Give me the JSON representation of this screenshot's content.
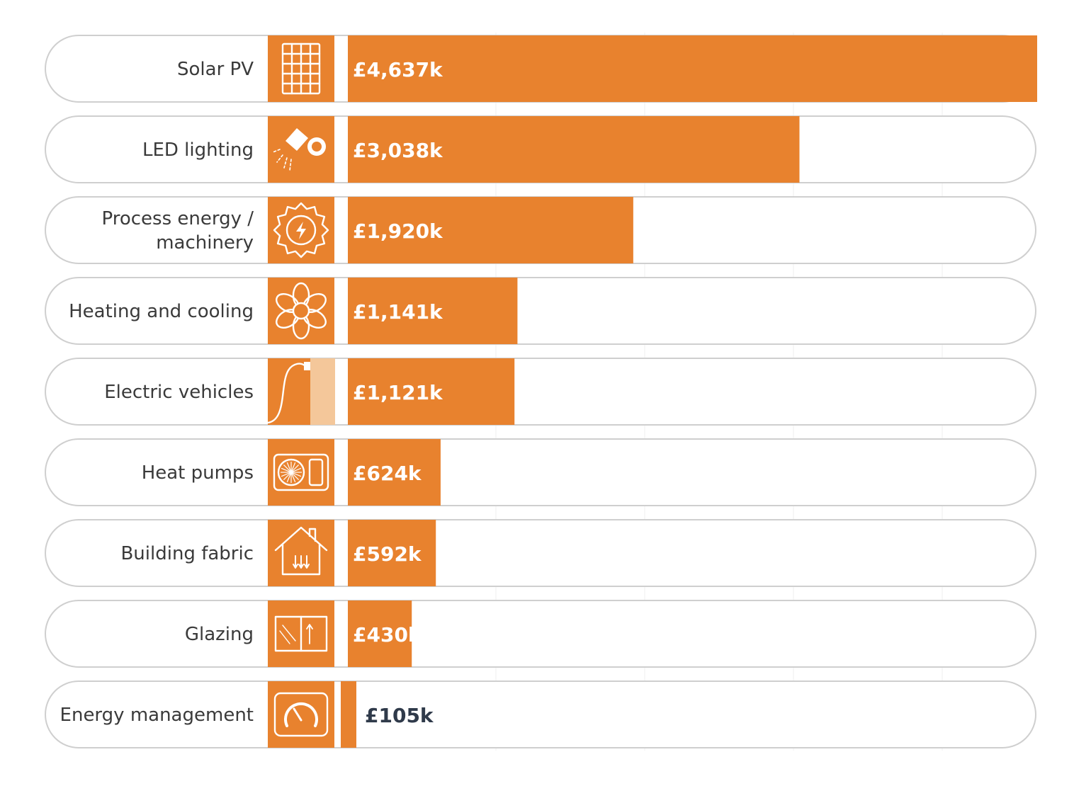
{
  "colors": {
    "bar": "#E8822E",
    "bar_light": "#F4C79A",
    "pill_border": "#cfcfcf",
    "label_text": "#3a3a3a",
    "value_in_bar": "#ffffff",
    "value_outside": "#2f3a4a"
  },
  "chart_data": {
    "type": "bar",
    "orientation": "horizontal",
    "categories": [
      "Solar PV",
      "LED lighting",
      "Process energy / machinery",
      "Heating and cooling",
      "Electric vehicles",
      "Heat pumps",
      "Building fabric",
      "Glazing",
      "Energy management"
    ],
    "label_lines": [
      [
        "Solar PV"
      ],
      [
        "LED lighting"
      ],
      [
        "Process energy /",
        "machinery"
      ],
      [
        "Heating and cooling"
      ],
      [
        "Electric vehicles"
      ],
      [
        "Heat pumps"
      ],
      [
        "Building fabric"
      ],
      [
        "Glazing"
      ],
      [
        "Energy management"
      ]
    ],
    "values": [
      4637,
      3038,
      1920,
      1141,
      1121,
      624,
      592,
      430,
      105
    ],
    "value_labels": [
      "£4,637k",
      "£3,038k",
      "£1,920k",
      "£1,141k",
      "£1,121k",
      "£624k",
      "£592k",
      "£430k",
      "£105k"
    ],
    "icons": [
      "solar-panel-icon",
      "spotlight-icon",
      "gear-lightning-icon",
      "fan-icon",
      "ev-charger-icon",
      "heat-pump-icon",
      "house-insulation-icon",
      "window-icon",
      "gauge-icon"
    ],
    "unit": "£k",
    "xlim": [
      0,
      4637
    ],
    "grid": true,
    "legend": "none"
  }
}
